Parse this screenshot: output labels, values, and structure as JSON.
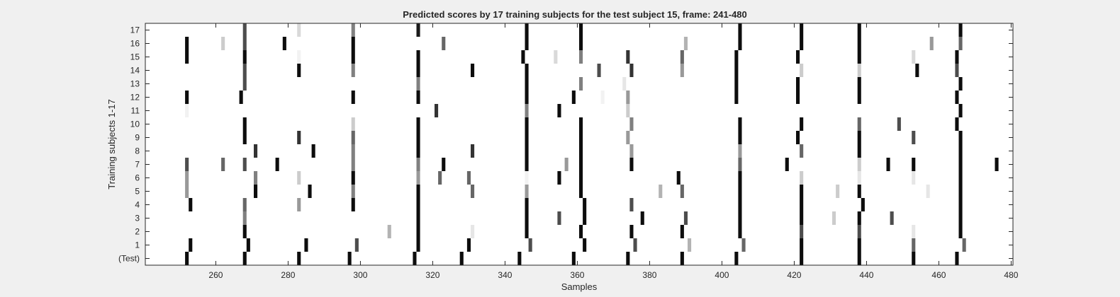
{
  "chart_data": {
    "type": "heatmap",
    "title": "Predicted scores by 17 training subjects for the test subject 15, frame: 241-480",
    "xlabel": "Samples",
    "ylabel": "Training subjects 1-17",
    "xlim": [
      241,
      480
    ],
    "xticks": [
      260,
      280,
      300,
      320,
      340,
      360,
      380,
      400,
      420,
      440,
      460,
      480
    ],
    "yticklabels": [
      "17",
      "16",
      "15",
      "14",
      "13",
      "12",
      "11",
      "10",
      "9",
      "8",
      "7",
      "6",
      "5",
      "4",
      "3",
      "2",
      "1",
      "(Test)"
    ],
    "colormap": "gray (0 = black, 1 = white)",
    "background_value": 1,
    "rows": [
      {
        "label": "17",
        "cells": [
          [
            268,
            0.3
          ],
          [
            283,
            0.85
          ],
          [
            298,
            0.5
          ],
          [
            316,
            0.1
          ],
          [
            346,
            0.05
          ],
          [
            361,
            0.05
          ],
          [
            405,
            0.05
          ],
          [
            422,
            0.05
          ],
          [
            438,
            0.05
          ],
          [
            466,
            0.05
          ]
        ]
      },
      {
        "label": "16",
        "cells": [
          [
            252,
            0.05
          ],
          [
            262,
            0.8
          ],
          [
            268,
            0.3
          ],
          [
            279,
            0.05
          ],
          [
            298,
            0.05
          ],
          [
            323,
            0.4
          ],
          [
            346,
            0.05
          ],
          [
            361,
            0.05
          ],
          [
            390,
            0.7
          ],
          [
            405,
            0.05
          ],
          [
            422,
            0.05
          ],
          [
            438,
            0.05
          ],
          [
            458,
            0.6
          ],
          [
            466,
            0.4
          ]
        ]
      },
      {
        "label": "15",
        "cells": [
          [
            252,
            0.05
          ],
          [
            268,
            0.05
          ],
          [
            283,
            0.95
          ],
          [
            298,
            0.05
          ],
          [
            316,
            0.05
          ],
          [
            345,
            0.05
          ],
          [
            354,
            0.85
          ],
          [
            361,
            0.5
          ],
          [
            374,
            0.2
          ],
          [
            389,
            0.4
          ],
          [
            404,
            0.05
          ],
          [
            421,
            0.05
          ],
          [
            438,
            0.05
          ],
          [
            453,
            0.85
          ],
          [
            465,
            0.05
          ]
        ]
      },
      {
        "label": "14",
        "cells": [
          [
            268,
            0.3
          ],
          [
            283,
            0.05
          ],
          [
            298,
            0.5
          ],
          [
            316,
            0.05
          ],
          [
            331,
            0.05
          ],
          [
            346,
            0.05
          ],
          [
            366,
            0.3
          ],
          [
            375,
            0.2
          ],
          [
            389,
            0.6
          ],
          [
            404,
            0.05
          ],
          [
            422,
            0.8
          ],
          [
            438,
            0.8
          ],
          [
            454,
            0.05
          ],
          [
            465,
            0.3
          ]
        ]
      },
      {
        "label": "13",
        "cells": [
          [
            268,
            0.3
          ],
          [
            316,
            0.5
          ],
          [
            346,
            0.05
          ],
          [
            361,
            0.5
          ],
          [
            373,
            0.9
          ],
          [
            404,
            0.05
          ],
          [
            421,
            0.05
          ],
          [
            438,
            0.05
          ],
          [
            466,
            0.05
          ]
        ]
      },
      {
        "label": "12",
        "cells": [
          [
            252,
            0.05
          ],
          [
            267,
            0.05
          ],
          [
            298,
            0.05
          ],
          [
            316,
            0.05
          ],
          [
            346,
            0.05
          ],
          [
            359,
            0.05
          ],
          [
            367,
            0.95
          ],
          [
            374,
            0.6
          ],
          [
            404,
            0.05
          ],
          [
            421,
            0.05
          ],
          [
            438,
            0.05
          ],
          [
            465,
            0.05
          ]
        ]
      },
      {
        "label": "11",
        "cells": [
          [
            252,
            0.95
          ],
          [
            321,
            0.2
          ],
          [
            346,
            0.5
          ],
          [
            355,
            0.05
          ],
          [
            374,
            0.8
          ],
          [
            466,
            0.05
          ]
        ]
      },
      {
        "label": "10",
        "cells": [
          [
            268,
            0.05
          ],
          [
            298,
            0.8
          ],
          [
            316,
            0.05
          ],
          [
            346,
            0.05
          ],
          [
            361,
            0.05
          ],
          [
            375,
            0.5
          ],
          [
            405,
            0.05
          ],
          [
            422,
            0.05
          ],
          [
            438,
            0.4
          ],
          [
            449,
            0.3
          ],
          [
            465,
            0.05
          ]
        ]
      },
      {
        "label": "9",
        "cells": [
          [
            268,
            0.05
          ],
          [
            283,
            0.2
          ],
          [
            298,
            0.4
          ],
          [
            316,
            0.05
          ],
          [
            346,
            0.05
          ],
          [
            361,
            0.05
          ],
          [
            374,
            0.6
          ],
          [
            405,
            0.05
          ],
          [
            421,
            0.05
          ],
          [
            438,
            0.05
          ],
          [
            453,
            0.3
          ],
          [
            466,
            0.05
          ]
        ]
      },
      {
        "label": "8",
        "cells": [
          [
            271,
            0.2
          ],
          [
            287,
            0.05
          ],
          [
            298,
            0.5
          ],
          [
            316,
            0.05
          ],
          [
            331,
            0.2
          ],
          [
            346,
            0.05
          ],
          [
            361,
            0.05
          ],
          [
            375,
            0.6
          ],
          [
            405,
            0.6
          ],
          [
            422,
            0.4
          ],
          [
            438,
            0.05
          ],
          [
            466,
            0.05
          ]
        ]
      },
      {
        "label": "7",
        "cells": [
          [
            252,
            0.3
          ],
          [
            262,
            0.4
          ],
          [
            268,
            0.3
          ],
          [
            277,
            0.05
          ],
          [
            298,
            0.5
          ],
          [
            316,
            0.5
          ],
          [
            323,
            0.05
          ],
          [
            346,
            0.05
          ],
          [
            357,
            0.6
          ],
          [
            361,
            0.05
          ],
          [
            375,
            0.05
          ],
          [
            405,
            0.4
          ],
          [
            418,
            0.05
          ],
          [
            438,
            0.8
          ],
          [
            446,
            0.05
          ],
          [
            453,
            0.05
          ],
          [
            466,
            0.05
          ],
          [
            476,
            0.05
          ]
        ]
      },
      {
        "label": "6",
        "cells": [
          [
            252,
            0.6
          ],
          [
            271,
            0.5
          ],
          [
            283,
            0.8
          ],
          [
            298,
            0.05
          ],
          [
            316,
            0.6
          ],
          [
            322,
            0.4
          ],
          [
            330,
            0.4
          ],
          [
            346,
            0.95
          ],
          [
            355,
            0.05
          ],
          [
            361,
            0.05
          ],
          [
            388,
            0.05
          ],
          [
            405,
            0.05
          ],
          [
            422,
            0.8
          ],
          [
            438,
            0.9
          ],
          [
            453,
            0.9
          ],
          [
            466,
            0.05
          ]
        ]
      },
      {
        "label": "5",
        "cells": [
          [
            252,
            0.6
          ],
          [
            271,
            0.05
          ],
          [
            286,
            0.05
          ],
          [
            298,
            0.5
          ],
          [
            316,
            0.05
          ],
          [
            331,
            0.4
          ],
          [
            346,
            0.6
          ],
          [
            361,
            0.05
          ],
          [
            383,
            0.7
          ],
          [
            389,
            0.4
          ],
          [
            405,
            0.05
          ],
          [
            422,
            0.05
          ],
          [
            432,
            0.8
          ],
          [
            438,
            0.05
          ],
          [
            457,
            0.9
          ],
          [
            466,
            0.05
          ]
        ]
      },
      {
        "label": "4",
        "cells": [
          [
            253,
            0.05
          ],
          [
            268,
            0.4
          ],
          [
            283,
            0.6
          ],
          [
            298,
            0.05
          ],
          [
            316,
            0.05
          ],
          [
            346,
            0.05
          ],
          [
            362,
            0.05
          ],
          [
            375,
            0.3
          ],
          [
            405,
            0.05
          ],
          [
            422,
            0.05
          ],
          [
            439,
            0.05
          ],
          [
            466,
            0.05
          ]
        ]
      },
      {
        "label": "3",
        "cells": [
          [
            268,
            0.5
          ],
          [
            316,
            0.05
          ],
          [
            346,
            0.05
          ],
          [
            355,
            0.3
          ],
          [
            362,
            0.05
          ],
          [
            378,
            0.05
          ],
          [
            390,
            0.3
          ],
          [
            405,
            0.05
          ],
          [
            422,
            0.05
          ],
          [
            431,
            0.8
          ],
          [
            438,
            0.05
          ],
          [
            447,
            0.3
          ],
          [
            466,
            0.05
          ]
        ]
      },
      {
        "label": "2",
        "cells": [
          [
            268,
            0.05
          ],
          [
            308,
            0.7
          ],
          [
            316,
            0.05
          ],
          [
            331,
            0.9
          ],
          [
            346,
            0.05
          ],
          [
            361,
            0.05
          ],
          [
            375,
            0.05
          ],
          [
            389,
            0.05
          ],
          [
            405,
            0.05
          ],
          [
            422,
            0.3
          ],
          [
            438,
            0.3
          ],
          [
            453,
            0.9
          ],
          [
            466,
            0.05
          ]
        ]
      },
      {
        "label": "1",
        "cells": [
          [
            253,
            0.05
          ],
          [
            269,
            0.05
          ],
          [
            285,
            0.05
          ],
          [
            299,
            0.3
          ],
          [
            316,
            0.05
          ],
          [
            330,
            0.05
          ],
          [
            347,
            0.3
          ],
          [
            362,
            0.05
          ],
          [
            376,
            0.3
          ],
          [
            391,
            0.7
          ],
          [
            406,
            0.4
          ],
          [
            422,
            0.05
          ],
          [
            438,
            0.05
          ],
          [
            453,
            0.4
          ],
          [
            467,
            0.4
          ]
        ]
      },
      {
        "label": "(Test)",
        "cells": [
          [
            252,
            0.05
          ],
          [
            268,
            0.05
          ],
          [
            283,
            0.05
          ],
          [
            297,
            0.05
          ],
          [
            315,
            0.05
          ],
          [
            328,
            0.05
          ],
          [
            344,
            0.05
          ],
          [
            359,
            0.05
          ],
          [
            374,
            0.05
          ],
          [
            389,
            0.05
          ],
          [
            404,
            0.05
          ],
          [
            422,
            0.05
          ],
          [
            438,
            0.05
          ],
          [
            453,
            0.05
          ],
          [
            465,
            0.05
          ]
        ]
      }
    ]
  }
}
